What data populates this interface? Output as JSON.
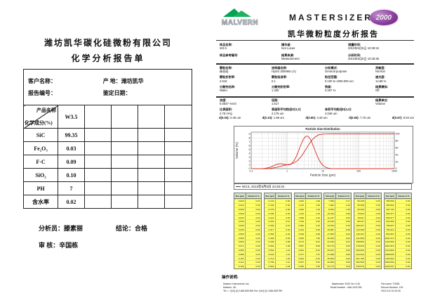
{
  "left_report": {
    "company": "潍坊凯华碳化硅微粉有限公司",
    "title": "化学分析报告单",
    "info": {
      "customer": {
        "label": "客户名称：",
        "value": ""
      },
      "origin": {
        "label": "产    地：",
        "value": "潍坊凯华"
      },
      "report_no": {
        "label": "报告编号：",
        "value": ""
      },
      "date": {
        "label": "鉴定日期：",
        "value": ""
      }
    },
    "table": {
      "corner_top": "产品名称",
      "corner_bottom": "化学成分(%)",
      "product_value": "W3.5",
      "rows": [
        {
          "name": "SiC",
          "value": "99.35"
        },
        {
          "name": "Fe₂O₃",
          "value": "0.03"
        },
        {
          "name": "F·C",
          "value": "0.09"
        },
        {
          "name": "SiO₂",
          "value": "0.10"
        },
        {
          "name": "PH",
          "value": "7"
        },
        {
          "name": "含水率",
          "value": "0.02"
        }
      ]
    },
    "footer": {
      "analyst_label": "分析员：",
      "analyst_name": "滕素丽",
      "conclusion_label": "结论：",
      "conclusion_value": "合格",
      "reviewer_label": "审    核：",
      "reviewer_name": "辛国栋"
    }
  },
  "right_report": {
    "brand": {
      "malvern": "MALVERN",
      "product": "MASTERSIZER",
      "badge": "2000",
      "report_title": "凯华微粉粒度分析报告"
    },
    "info_block1": [
      {
        "label": "样品名称:",
        "value": "W3.5"
      },
      {
        "label": "操作者:",
        "value": "Ivor Lucas"
      },
      {
        "label": "测量时间:",
        "value": "2013年9月5日 10:28:34"
      },
      {
        "label": "样品参考编号:",
        "value": ""
      },
      {
        "label": "结果来源:",
        "value": "Measurement"
      },
      {
        "label": "分析时间:",
        "value": "2013年9月5日 10:28:38"
      }
    ],
    "info_block2": [
      {
        "label": "颗粒名称:",
        "value": "碳化硅"
      },
      {
        "label": "进样器名称:",
        "value": "Hydro 2000MU (A)"
      },
      {
        "label": "分析模式:",
        "value": "General purpose"
      },
      {
        "label": "灵敏度:",
        "value": "Normal"
      },
      {
        "label": "颗粒折射率:",
        "value": "2.616"
      },
      {
        "label": "颗粒吸收率:",
        "value": "0.1"
      },
      {
        "label": "粒径范围:",
        "value": "0.100 to 1000.000 um"
      },
      {
        "label": "遮光度:",
        "value": "14.88 %"
      },
      {
        "label": "分散剂名称:",
        "value": "Water"
      },
      {
        "label": "分散剂折射率:",
        "value": "1.330"
      },
      {
        "label": "残差:",
        "value": "0.267 %"
      },
      {
        "label": "结果模拟:",
        "value": "Off"
      }
    ],
    "info_block3": [
      {
        "label": "浓度:",
        "value": "0.0837 %Vol"
      },
      {
        "label": "径距:",
        "value": "1.617"
      },
      {
        "label": "",
        "value": ""
      },
      {
        "label": "结果单位:",
        "value": "Volume"
      },
      {
        "label": "比表面积:",
        "value": "2.78 m²/g"
      },
      {
        "label": "表面积平均粒径D[3,2]:",
        "value": "2.175 um"
      },
      {
        "label": "体积平均粒径D[4,3]:",
        "value": "4.046 um"
      },
      {
        "label": "",
        "value": ""
      }
    ],
    "d_values": [
      {
        "label": "d(0.03):",
        "value": "0.49 um"
      },
      {
        "label": "d(0.10):",
        "value": "1.98 um"
      },
      {
        "label": "d(0.50):",
        "value": "3.49 um"
      },
      {
        "label": "d(0.90):",
        "value": "7.76 um"
      },
      {
        "label": "d(0.97):",
        "value": "8.94 um"
      }
    ],
    "result_table": {
      "size_header": "Size (µm)",
      "volume_header": "Volume In %",
      "groups": [
        {
          "sizes": [
            "0.020",
            "0.022",
            "0.025",
            "0.028",
            "0.032",
            "0.036",
            "0.040",
            "0.045",
            "0.050",
            "0.056",
            "0.063",
            "0.071",
            "0.080",
            "0.089",
            "0.100",
            "0.112",
            "0.126"
          ],
          "volumes": [
            "0.00",
            "0.00",
            "0.00",
            "0.00",
            "0.00",
            "0.00",
            "0.00",
            "0.00",
            "0.00",
            "0.00",
            "0.00",
            "0.00",
            "0.00",
            "0.00",
            "0.00",
            "0.00",
            "0.00"
          ]
        },
        {
          "sizes": [
            "0.142",
            "0.159",
            "0.178",
            "0.200",
            "0.224",
            "0.252",
            "0.283",
            "0.317",
            "0.356",
            "0.399",
            "0.448",
            "0.502",
            "0.564",
            "0.632",
            "0.710",
            "0.796",
            "0.893"
          ],
          "volumes": [
            "0.00",
            "0.00",
            "0.00",
            "0.02",
            "0.05",
            "0.10",
            "0.18",
            "0.30",
            "0.46",
            "0.66",
            "0.88",
            "1.08",
            "1.24",
            "1.31",
            "1.30",
            "1.21",
            "1.09"
          ]
        },
        {
          "sizes": [
            "1.002",
            "1.125",
            "1.262",
            "1.416",
            "1.589",
            "1.783",
            "2.000",
            "2.244",
            "2.518",
            "2.825",
            "3.170",
            "3.557",
            "3.991",
            "4.477",
            "5.024",
            "5.637",
            "6.325"
          ],
          "volumes": [
            "1.00",
            "1.00",
            "1.16",
            "1.54",
            "2.16",
            "3.02",
            "4.10",
            "5.30",
            "6.48",
            "7.50",
            "8.21",
            "8.50",
            "8.31",
            "7.67",
            "6.70",
            "5.52",
            "4.30"
          ]
        },
        {
          "sizes": [
            "7.096",
            "7.962",
            "8.934",
            "10.024",
            "11.247",
            "12.619",
            "14.159",
            "15.887",
            "17.825",
            "20.000",
            "22.440",
            "25.179",
            "28.251",
            "31.698",
            "35.566",
            "39.905",
            "44.774"
          ],
          "volumes": [
            "3.17",
            "2.20",
            "1.45",
            "0.90",
            "0.53",
            "0.29",
            "0.15",
            "0.08",
            "0.04",
            "0.02",
            "0.01",
            "0.00",
            "0.00",
            "0.00",
            "0.00",
            "0.00",
            "0.00"
          ]
        },
        {
          "sizes": [
            "50.238",
            "56.368",
            "63.246",
            "70.963",
            "79.621",
            "89.337",
            "100.237",
            "112.468",
            "126.191",
            "141.589",
            "158.866",
            "178.250",
            "200.000",
            "224.404",
            "251.785",
            "282.508",
            "316.979"
          ],
          "volumes": [
            "0.00",
            "0.00",
            "0.00",
            "0.00",
            "0.00",
            "0.00",
            "0.00",
            "0.00",
            "0.00",
            "0.00",
            "0.00",
            "0.00",
            "0.00",
            "0.00",
            "0.00",
            "0.00",
            "0.00"
          ]
        },
        {
          "sizes": [
            "355.656",
            "399.052",
            "447.744",
            "502.377",
            "563.677",
            "632.456",
            "709.627",
            "796.214",
            "893.367",
            "1002.374",
            "1124.683",
            "1261.915",
            "1415.892",
            "1588.656",
            "1782.502",
            "2000.000",
            "2244.037"
          ],
          "volumes": [
            "0.00",
            "0.00",
            "0.00",
            "0.00",
            "0.00",
            "0.00",
            "0.00",
            "0.00",
            "0.00",
            "0.00",
            "0.00",
            "0.00",
            "0.00",
            "0.00",
            "0.00",
            "0.00",
            "0.00"
          ]
        }
      ]
    },
    "ops_label": "操作说明:",
    "footer": {
      "left_lines": [
        "Malvern Instruments Ltd.",
        "Malvern, UK",
        "Tel := +[44] (0) 1684-892456 Fax +[44] (0) 1684-892789"
      ],
      "center_lines": [
        "Mastersizer 2000 Ver. 5.40",
        "Serial Number : MAL1021768"
      ],
      "right_lines": [
        "File name: F3256",
        "Record Number: 191",
        "2013-9-6 10:43:26"
      ]
    }
  },
  "chart_data": {
    "type": "line",
    "title": "Particle Size Distribution",
    "xlabel": "Particle Size (µm)",
    "ylabel": "Volume (%)",
    "legend": "W3.5, 2013年9月5日 10:28:34",
    "x_scale": "log",
    "xlim": [
      0.1,
      1000
    ],
    "xticks": [
      0.1,
      1,
      10,
      100,
      1000
    ],
    "ylim": [
      0,
      9.5
    ],
    "left_ticks": [
      0,
      1,
      2,
      3,
      4,
      5,
      6,
      7,
      8,
      9
    ],
    "right_ylim": [
      0,
      105
    ],
    "right_ticks": [
      0,
      20,
      40,
      60,
      80,
      100
    ],
    "grid": true,
    "legend_position": "bottom",
    "line_color": "#d92b20",
    "series": [
      {
        "name": "volume frequency",
        "x": [
          0.1,
          0.2,
          0.252,
          0.317,
          0.399,
          0.502,
          0.632,
          0.796,
          1.002,
          1.125,
          1.262,
          1.416,
          1.589,
          1.783,
          2.0,
          2.244,
          2.518,
          2.825,
          3.17,
          3.557,
          3.991,
          4.477,
          5.024,
          5.637,
          6.325,
          7.096,
          7.962,
          8.934,
          10.024,
          11.247,
          12.619,
          14.159,
          15.887,
          17.825,
          20,
          25.179,
          1000
        ],
        "y": [
          0,
          0.02,
          0.1,
          0.3,
          0.66,
          1.08,
          1.31,
          1.21,
          1.0,
          1.0,
          1.16,
          1.54,
          2.16,
          3.02,
          4.1,
          5.3,
          6.48,
          7.5,
          8.21,
          8.5,
          8.31,
          7.67,
          6.7,
          5.52,
          4.3,
          3.17,
          2.2,
          1.45,
          0.9,
          0.53,
          0.29,
          0.15,
          0.08,
          0.04,
          0.02,
          0,
          0
        ]
      },
      {
        "name": "cumulative volume",
        "x": [
          0.1,
          0.2,
          0.252,
          0.317,
          0.399,
          0.502,
          0.632,
          0.796,
          1.002,
          1.262,
          1.589,
          2.0,
          2.518,
          3.17,
          3.991,
          5.024,
          6.325,
          7.962,
          10.024,
          12.619,
          15.887,
          20,
          1000
        ],
        "y": [
          0,
          0.02,
          0.17,
          0.65,
          1.77,
          3.73,
          6.28,
          8.79,
          10.88,
          13.04,
          16.74,
          23.86,
          35.64,
          51.35,
          68.16,
          82.53,
          92.35,
          97.72,
          99.2,
          99.8,
          100,
          100,
          100
        ]
      }
    ]
  }
}
